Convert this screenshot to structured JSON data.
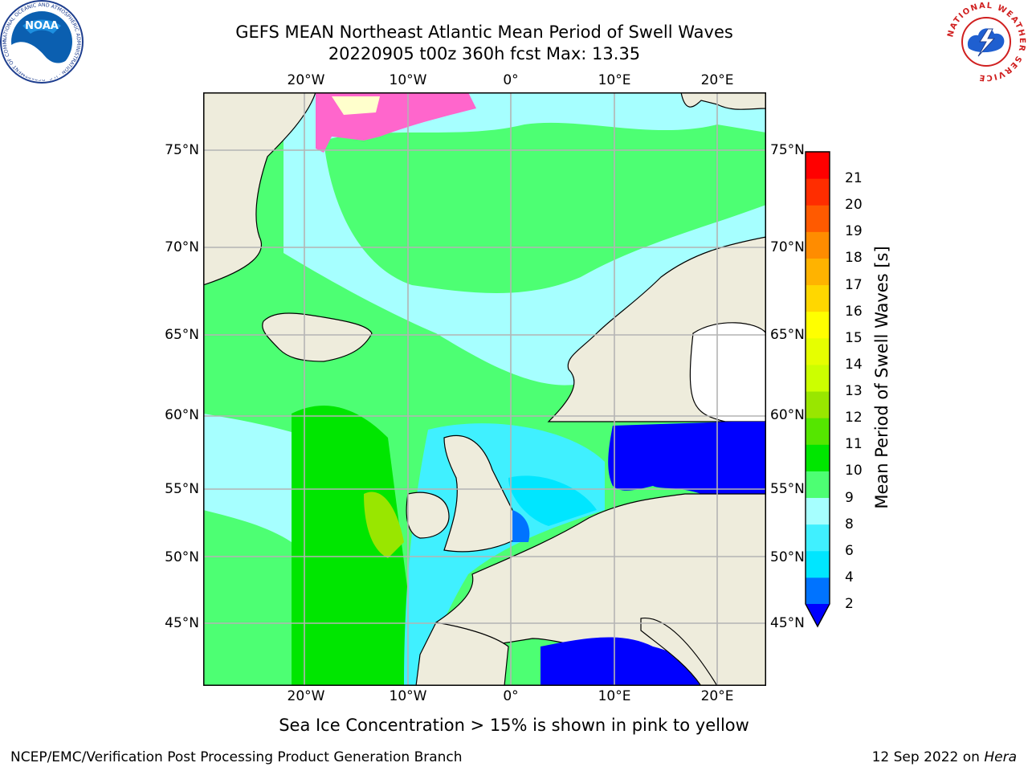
{
  "title": {
    "line1": "GEFS MEAN Northeast Atlantic Mean Period of Swell Waves",
    "line2": "20220905 t00z 360h fcst   Max: 13.35"
  },
  "map": {
    "lon_labels": [
      "20°W",
      "10°W",
      "0°",
      "10°E",
      "20°E"
    ],
    "lat_labels": [
      "75°N",
      "70°N",
      "65°N",
      "60°N",
      "55°N",
      "50°N",
      "45°N"
    ],
    "colors": {
      "land": "#eeecdc",
      "grid": "#b4b4b4",
      "frame": "#000000"
    }
  },
  "colorbar": {
    "label": "Mean Period of Swell Waves [s]",
    "ticks": [
      "2",
      "4",
      "6",
      "8",
      "9",
      "10",
      "11",
      "12",
      "13",
      "14",
      "15",
      "16",
      "17",
      "18",
      "19",
      "20",
      "21"
    ],
    "colors": [
      "#0073ff",
      "#00e6ff",
      "#40f0ff",
      "#a6ffff",
      "#4dff73",
      "#00e600",
      "#55e600",
      "#99e600",
      "#ccff00",
      "#e6ff00",
      "#ffff00",
      "#ffd700",
      "#ffb300",
      "#ff8c00",
      "#ff5a00",
      "#ff2d00",
      "#ff0000"
    ],
    "under_color": "#0000ff"
  },
  "caption": "Sea Ice Concentration > 15% is shown in pink to yellow",
  "footer": {
    "left": "NCEP/EMC/Verification Post Processing Product Generation Branch",
    "date": "12 Sep 2022 on",
    "host": "Hera"
  },
  "logos": {
    "noaa": "NOAA",
    "noaa_ring": "NATIONAL OCEANIC AND ATMOSPHERIC ADMINISTRATION · U.S. DEPARTMENT OF COMMERCE ·",
    "nws_ring": "NATIONAL WEATHER SERVICE"
  }
}
